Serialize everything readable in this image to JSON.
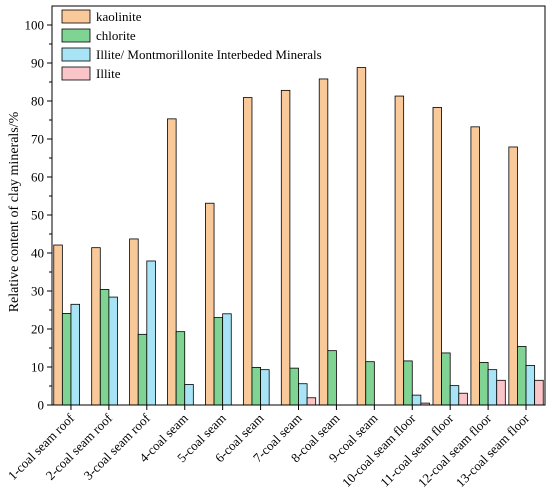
{
  "chart_data": {
    "type": "bar",
    "title": "",
    "xlabel": "",
    "ylabel": "Relative content of clay minerals/%",
    "ylim": [
      0,
      105
    ],
    "yticks": [
      0,
      10,
      20,
      30,
      40,
      50,
      60,
      70,
      80,
      90,
      100
    ],
    "grid": false,
    "legend_position": "top-left",
    "categories": [
      "1-coal seam roof",
      "2-coal seam roof",
      "3-coal seam roof",
      "4-coal seam",
      "5-coal seam",
      "6-coal seam",
      "7-coal seam",
      "8-coal seam",
      "9-coal seam",
      "10-coal seam floor",
      "11-coal seam floor",
      "12-coal seam floor",
      "13-coal seam floor"
    ],
    "series": [
      {
        "name": "kaolinite",
        "color": "#F9C99A",
        "values": [
          42.1,
          41.4,
          43.7,
          75.3,
          53.1,
          80.9,
          82.8,
          85.8,
          88.8,
          81.3,
          78.3,
          73.2,
          67.9
        ]
      },
      {
        "name": "chlorite",
        "color": "#7FD493",
        "values": [
          24.1,
          30.4,
          18.6,
          19.3,
          23.0,
          9.9,
          9.7,
          14.3,
          11.4,
          11.6,
          13.7,
          11.2,
          15.4
        ]
      },
      {
        "name": "Illite/ Montmorillonite Interbeded Minerals",
        "color": "#A8E4F5",
        "values": [
          26.5,
          28.4,
          37.9,
          5.4,
          24.0,
          9.3,
          5.6,
          0,
          0,
          2.6,
          5.1,
          9.3,
          10.4
        ]
      },
      {
        "name": "Illite",
        "color": "#F9C5C9",
        "values": [
          0,
          0,
          0,
          0,
          0,
          0,
          1.9,
          0,
          0,
          0.5,
          3.1,
          6.5,
          6.5
        ]
      }
    ]
  }
}
